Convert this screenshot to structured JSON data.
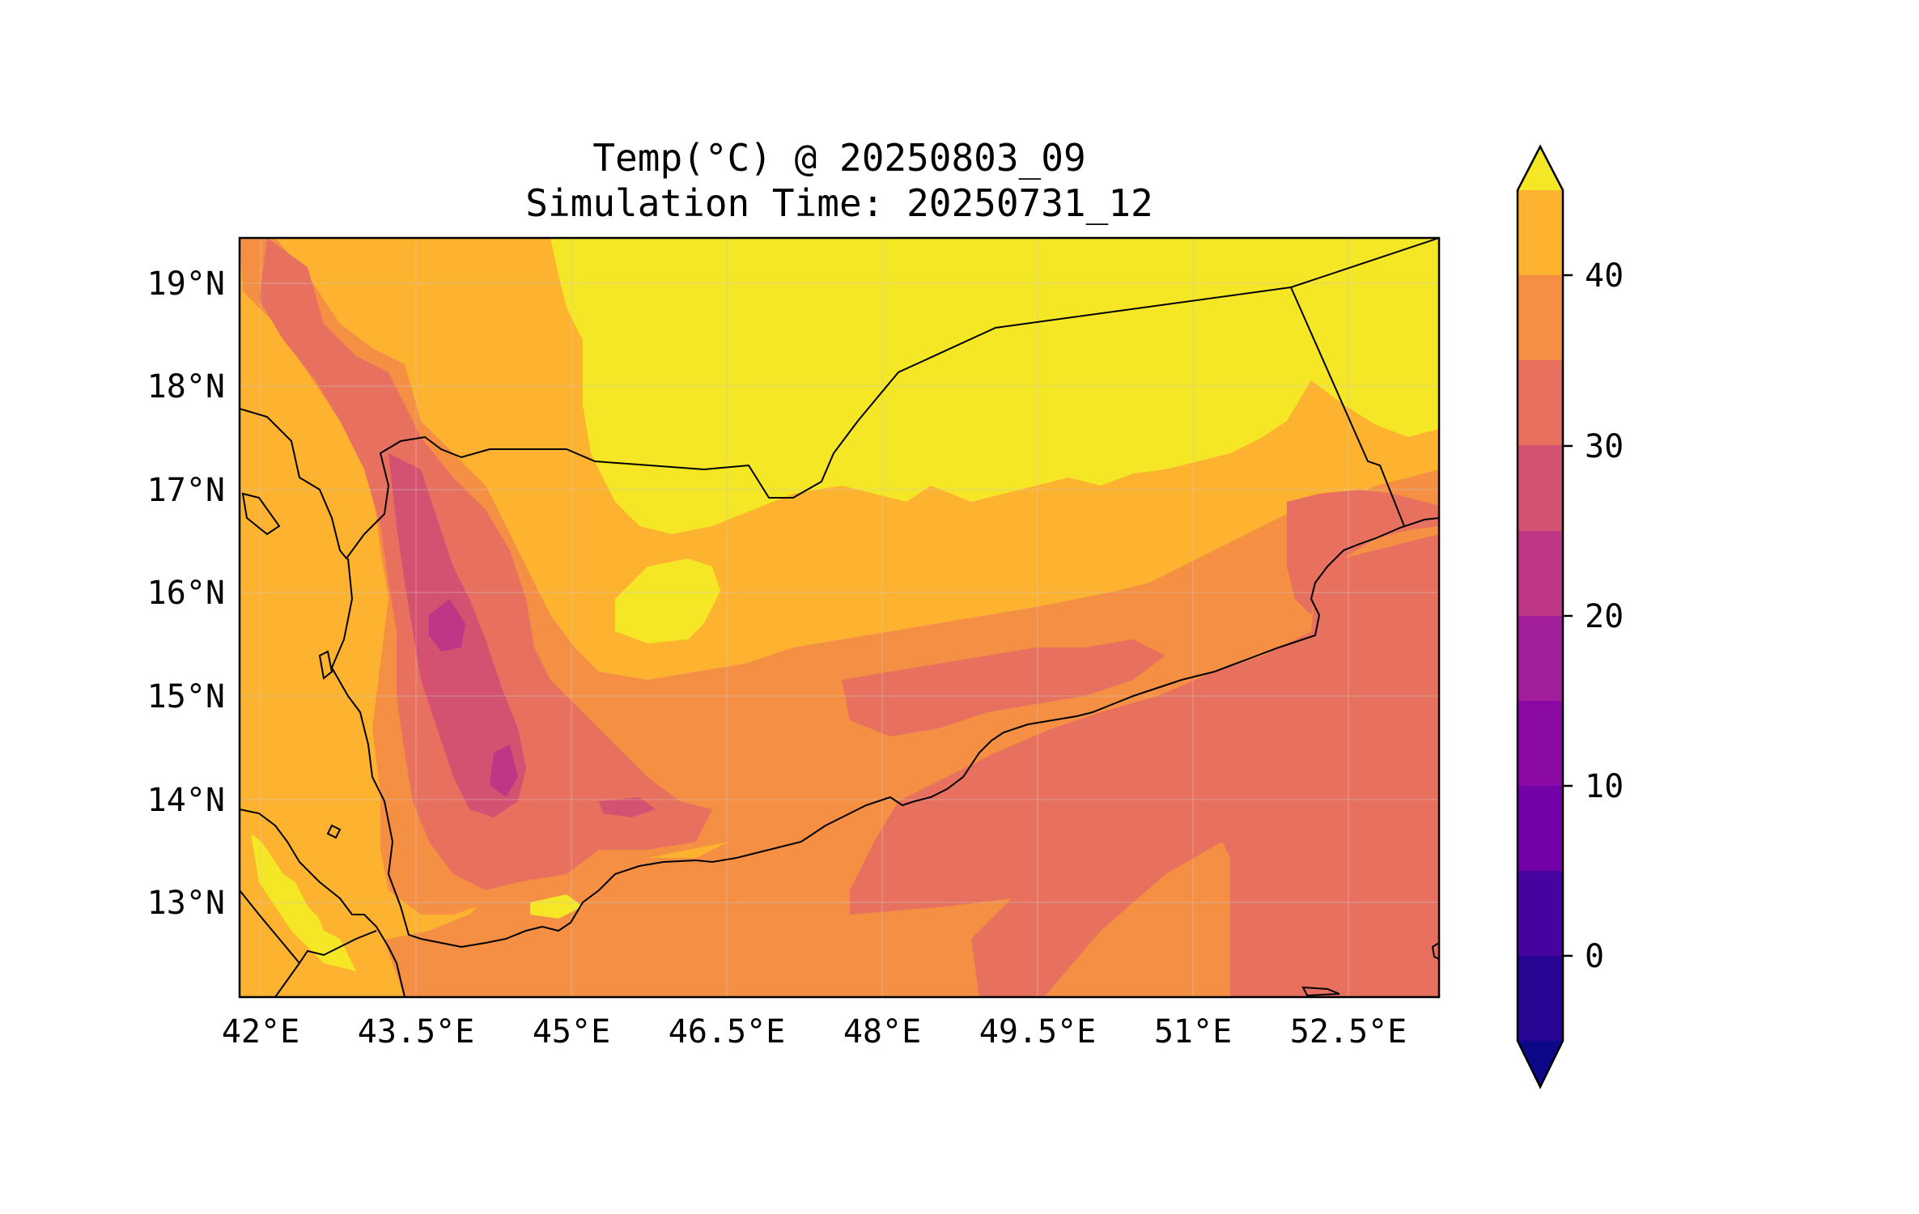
{
  "title": {
    "line1": "Temp(°C) @ 20250803_09",
    "line2": "Simulation Time: 20250731_12"
  },
  "map": {
    "lon_range": [
      41.9,
      53.5
    ],
    "lat_range": [
      12.1,
      19.45
    ],
    "x_ticks": [
      "42°E",
      "43.5°E",
      "45°E",
      "46.5°E",
      "48°E",
      "49.5°E",
      "51°E",
      "52.5°E"
    ],
    "y_ticks": [
      "19°N",
      "18°N",
      "17°N",
      "16°N",
      "15°N",
      "14°N",
      "13°N"
    ],
    "gridlines": true
  },
  "colorbar": {
    "ticks": [
      "40",
      "30",
      "20",
      "10",
      "0"
    ],
    "levels": [
      -5,
      0,
      5,
      10,
      15,
      20,
      25,
      30,
      35,
      40,
      45
    ],
    "extend": "both",
    "colors": {
      "below": "#0d0887",
      "lv_-5": "#2a0593",
      "lv_0": "#47039f",
      "lv_5": "#7301a8",
      "lv_10": "#8b0aa5",
      "lv_15": "#a31e9a",
      "lv_20": "#bd3786",
      "lv_25": "#d35171",
      "lv_30": "#e8705f",
      "lv_35": "#f48f44",
      "lv_40": "#fdb32f",
      "above": "#f5e626"
    }
  }
}
